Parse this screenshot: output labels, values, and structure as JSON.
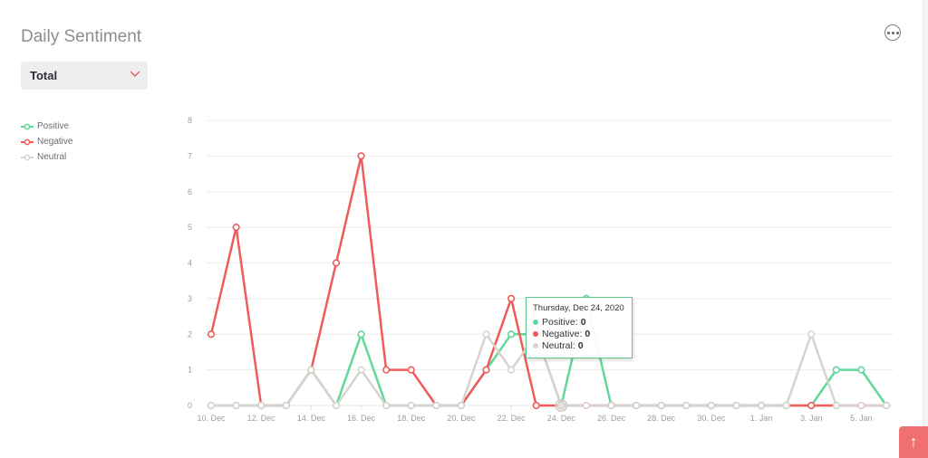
{
  "title": "Daily Sentiment",
  "filter": {
    "selected": "Total"
  },
  "legend": [
    {
      "label": "Positive",
      "color": "#5fd89a"
    },
    {
      "label": "Negative",
      "color": "#ef5b5b"
    },
    {
      "label": "Neutral",
      "color": "#d6d4cf"
    }
  ],
  "tooltip": {
    "date": "Thursday, Dec 24, 2020",
    "rows": [
      {
        "label": "Positive",
        "value": "0",
        "color": "#5fd89a"
      },
      {
        "label": "Negative",
        "value": "0",
        "color": "#ef5b5b"
      },
      {
        "label": "Neutral",
        "value": "0",
        "color": "#d6d4cf"
      }
    ]
  },
  "chart_data": {
    "type": "line",
    "x": [
      "10. Dec",
      "11. Dec",
      "12. Dec",
      "13. Dec",
      "14. Dec",
      "15. Dec",
      "16. Dec",
      "17. Dec",
      "18. Dec",
      "19. Dec",
      "20. Dec",
      "21. Dec",
      "22. Dec",
      "23. Dec",
      "24. Dec",
      "25. Dec",
      "26. Dec",
      "27. Dec",
      "28. Dec",
      "29. Dec",
      "30. Dec",
      "31. Dec",
      "1. Jan",
      "2. Jan",
      "3. Jan",
      "4. Jan",
      "5. Jan",
      "6. Jan"
    ],
    "xticks": [
      "10. Dec",
      "12. Dec",
      "14. Dec",
      "16. Dec",
      "18. Dec",
      "20. Dec",
      "22. Dec",
      "24. Dec",
      "26. Dec",
      "28. Dec",
      "30. Dec",
      "1. Jan",
      "3. Jan",
      "5. Jan"
    ],
    "yticks": [
      0,
      1,
      2,
      3,
      4,
      5,
      6,
      7,
      8
    ],
    "ylim": [
      0,
      8
    ],
    "grid": true,
    "legend_position": "left",
    "series": [
      {
        "name": "Positive",
        "color": "#5fd89a",
        "values": [
          0,
          0,
          0,
          0,
          1,
          0,
          2,
          0,
          0,
          0,
          0,
          1,
          2,
          2,
          0,
          3,
          0,
          0,
          0,
          0,
          0,
          0,
          0,
          0,
          0,
          1,
          1,
          0
        ]
      },
      {
        "name": "Negative",
        "color": "#ef5b5b",
        "values": [
          2,
          5,
          0,
          0,
          1,
          4,
          7,
          1,
          1,
          0,
          0,
          1,
          3,
          0,
          0,
          0,
          0,
          0,
          0,
          0,
          0,
          0,
          0,
          0,
          0,
          0,
          0,
          0
        ]
      },
      {
        "name": "Neutral",
        "color": "#d6d4cf",
        "values": [
          0,
          0,
          0,
          0,
          1,
          0,
          1,
          0,
          0,
          0,
          0,
          2,
          1,
          2,
          0,
          0,
          0,
          0,
          0,
          0,
          0,
          0,
          0,
          0,
          2,
          0,
          0,
          0
        ]
      }
    ]
  }
}
